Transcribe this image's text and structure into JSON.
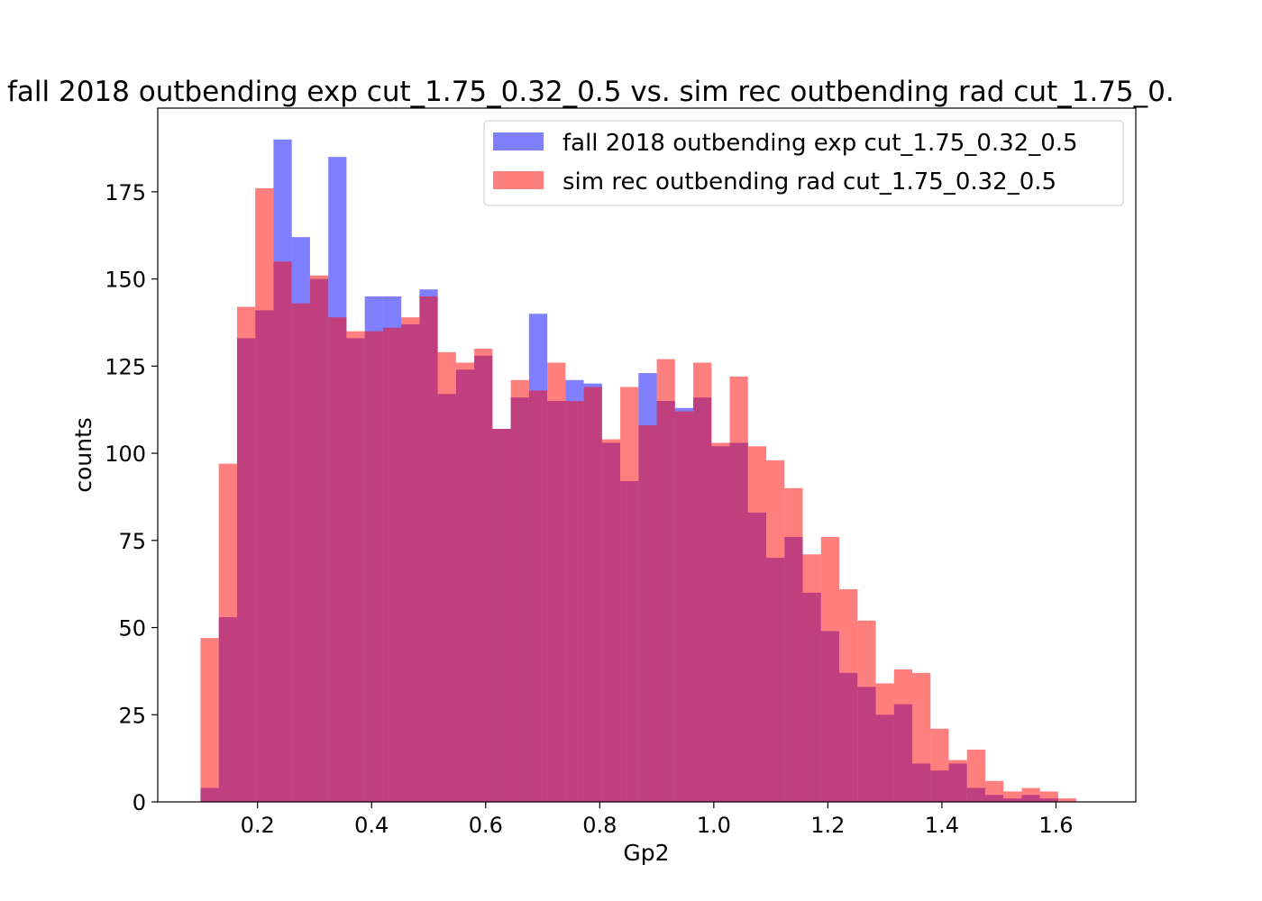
{
  "chart_data": {
    "type": "bar",
    "subtype": "overlaid-histogram",
    "title": "fall 2018 outbending exp cut_1.75_0.32_0.5 vs. sim rec outbending rad cut_1.75_0.",
    "xlabel": "Gp2",
    "ylabel": "counts",
    "xlim": [
      0.025,
      1.74
    ],
    "ylim": [
      0,
      199
    ],
    "xticks": [
      "0.2",
      "0.4",
      "0.6",
      "0.8",
      "1.0",
      "1.2",
      "1.4",
      "1.6"
    ],
    "yticks": [
      "0",
      "25",
      "50",
      "75",
      "100",
      "125",
      "150",
      "175"
    ],
    "grid": false,
    "legend_position": "top-right",
    "bin_start": 0.1,
    "bin_width": 0.032,
    "series": [
      {
        "name": "fall 2018 outbending exp cut_1.75_0.32_0.5",
        "color": "#0000ff",
        "opacity": 0.5,
        "values": [
          4,
          53,
          133,
          141,
          190,
          162,
          150,
          185,
          133,
          145,
          145,
          137,
          147,
          117,
          124,
          128,
          107,
          116,
          140,
          115,
          121,
          120,
          103,
          92,
          123,
          115,
          113,
          116,
          102,
          103,
          83,
          70,
          76,
          60,
          49,
          37,
          33,
          25,
          28,
          11,
          9,
          11,
          4,
          2,
          1,
          2,
          1
        ]
      },
      {
        "name": "sim rec outbending rad cut_1.75_0.32_0.5",
        "color": "#ff0000",
        "opacity": 0.5,
        "values": [
          47,
          97,
          142,
          176,
          155,
          143,
          151,
          139,
          135,
          135,
          136,
          139,
          145,
          129,
          126,
          130,
          107,
          121,
          118,
          126,
          115,
          119,
          104,
          119,
          108,
          127,
          112,
          126,
          103,
          122,
          102,
          98,
          90,
          71,
          76,
          61,
          52,
          34,
          38,
          37,
          21,
          12,
          15,
          6,
          3,
          4,
          3,
          1
        ]
      }
    ]
  }
}
